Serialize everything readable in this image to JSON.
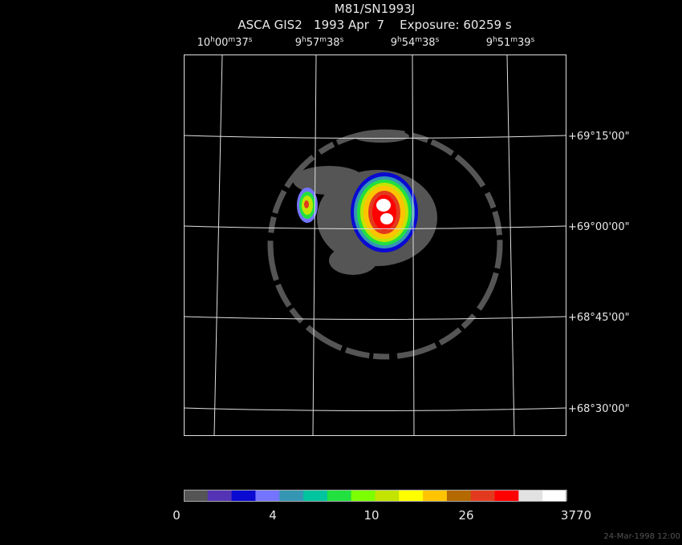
{
  "header": {
    "title": "M81/SN1993J",
    "subtitle": "ASCA GIS2   1993 Apr  7    Exposure: 60259 s"
  },
  "ra_labels": [
    "10h00m37s",
    "9h57m38s",
    "9h54m38s",
    "9h51m39s"
  ],
  "dec_labels": [
    "+69°15'00\"",
    "+69°00'00\"",
    "+68°45'00\"",
    "+68°30'00\""
  ],
  "colorbar": {
    "colors": [
      "#555555",
      "#5433b4",
      "#0a0ad2",
      "#7474ff",
      "#3596b4",
      "#00c49e",
      "#22e040",
      "#7cff00",
      "#c2e400",
      "#ffff00",
      "#ffc400",
      "#b46a00",
      "#e23a1e",
      "#ff0000",
      "#e2e2e2",
      "#ffffff"
    ],
    "labels": [
      0,
      4,
      10,
      26,
      3770
    ]
  },
  "timestamp": "24-Mar-1998 12:00"
}
